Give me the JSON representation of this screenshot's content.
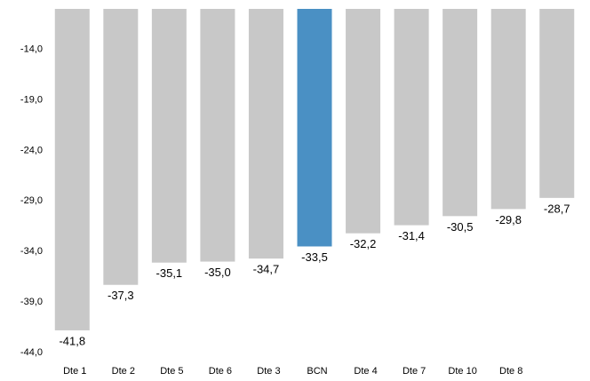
{
  "chart_data": {
    "type": "bar",
    "categories": [
      "Dte 1",
      "Dte 2",
      "Dte 5",
      "Dte 6",
      "Dte 3",
      "BCN",
      "Dte 4",
      "Dte 7",
      "Dte 10",
      "Dte 8",
      null
    ],
    "values": [
      -41.8,
      -37.3,
      -35.1,
      -35.0,
      -34.7,
      -33.5,
      -32.2,
      -31.4,
      -30.5,
      -29.8,
      -28.7
    ],
    "value_labels": [
      "-41,8",
      "-37,3",
      "-35,1",
      "-35,0",
      "-34,7",
      "-33,5",
      "-32,2",
      "-31,4",
      "-30,5",
      "-29,8",
      "-28,7"
    ],
    "colors": [
      "#c8c8c8",
      "#c8c8c8",
      "#c8c8c8",
      "#c8c8c8",
      "#c8c8c8",
      "#4a90c4",
      "#c8c8c8",
      "#c8c8c8",
      "#c8c8c8",
      "#c8c8c8",
      "#c8c8c8"
    ],
    "ylim": [
      -44,
      -10
    ],
    "yticks": [
      {
        "value": -14,
        "label": "-14,0"
      },
      {
        "value": -19,
        "label": "-19,0"
      },
      {
        "value": -24,
        "label": "-24,0"
      },
      {
        "value": -29,
        "label": "-29,0"
      },
      {
        "value": -34,
        "label": "-34,0"
      },
      {
        "value": -39,
        "label": "-39,0"
      },
      {
        "value": -44,
        "label": "-44,0"
      }
    ],
    "grid": false
  }
}
